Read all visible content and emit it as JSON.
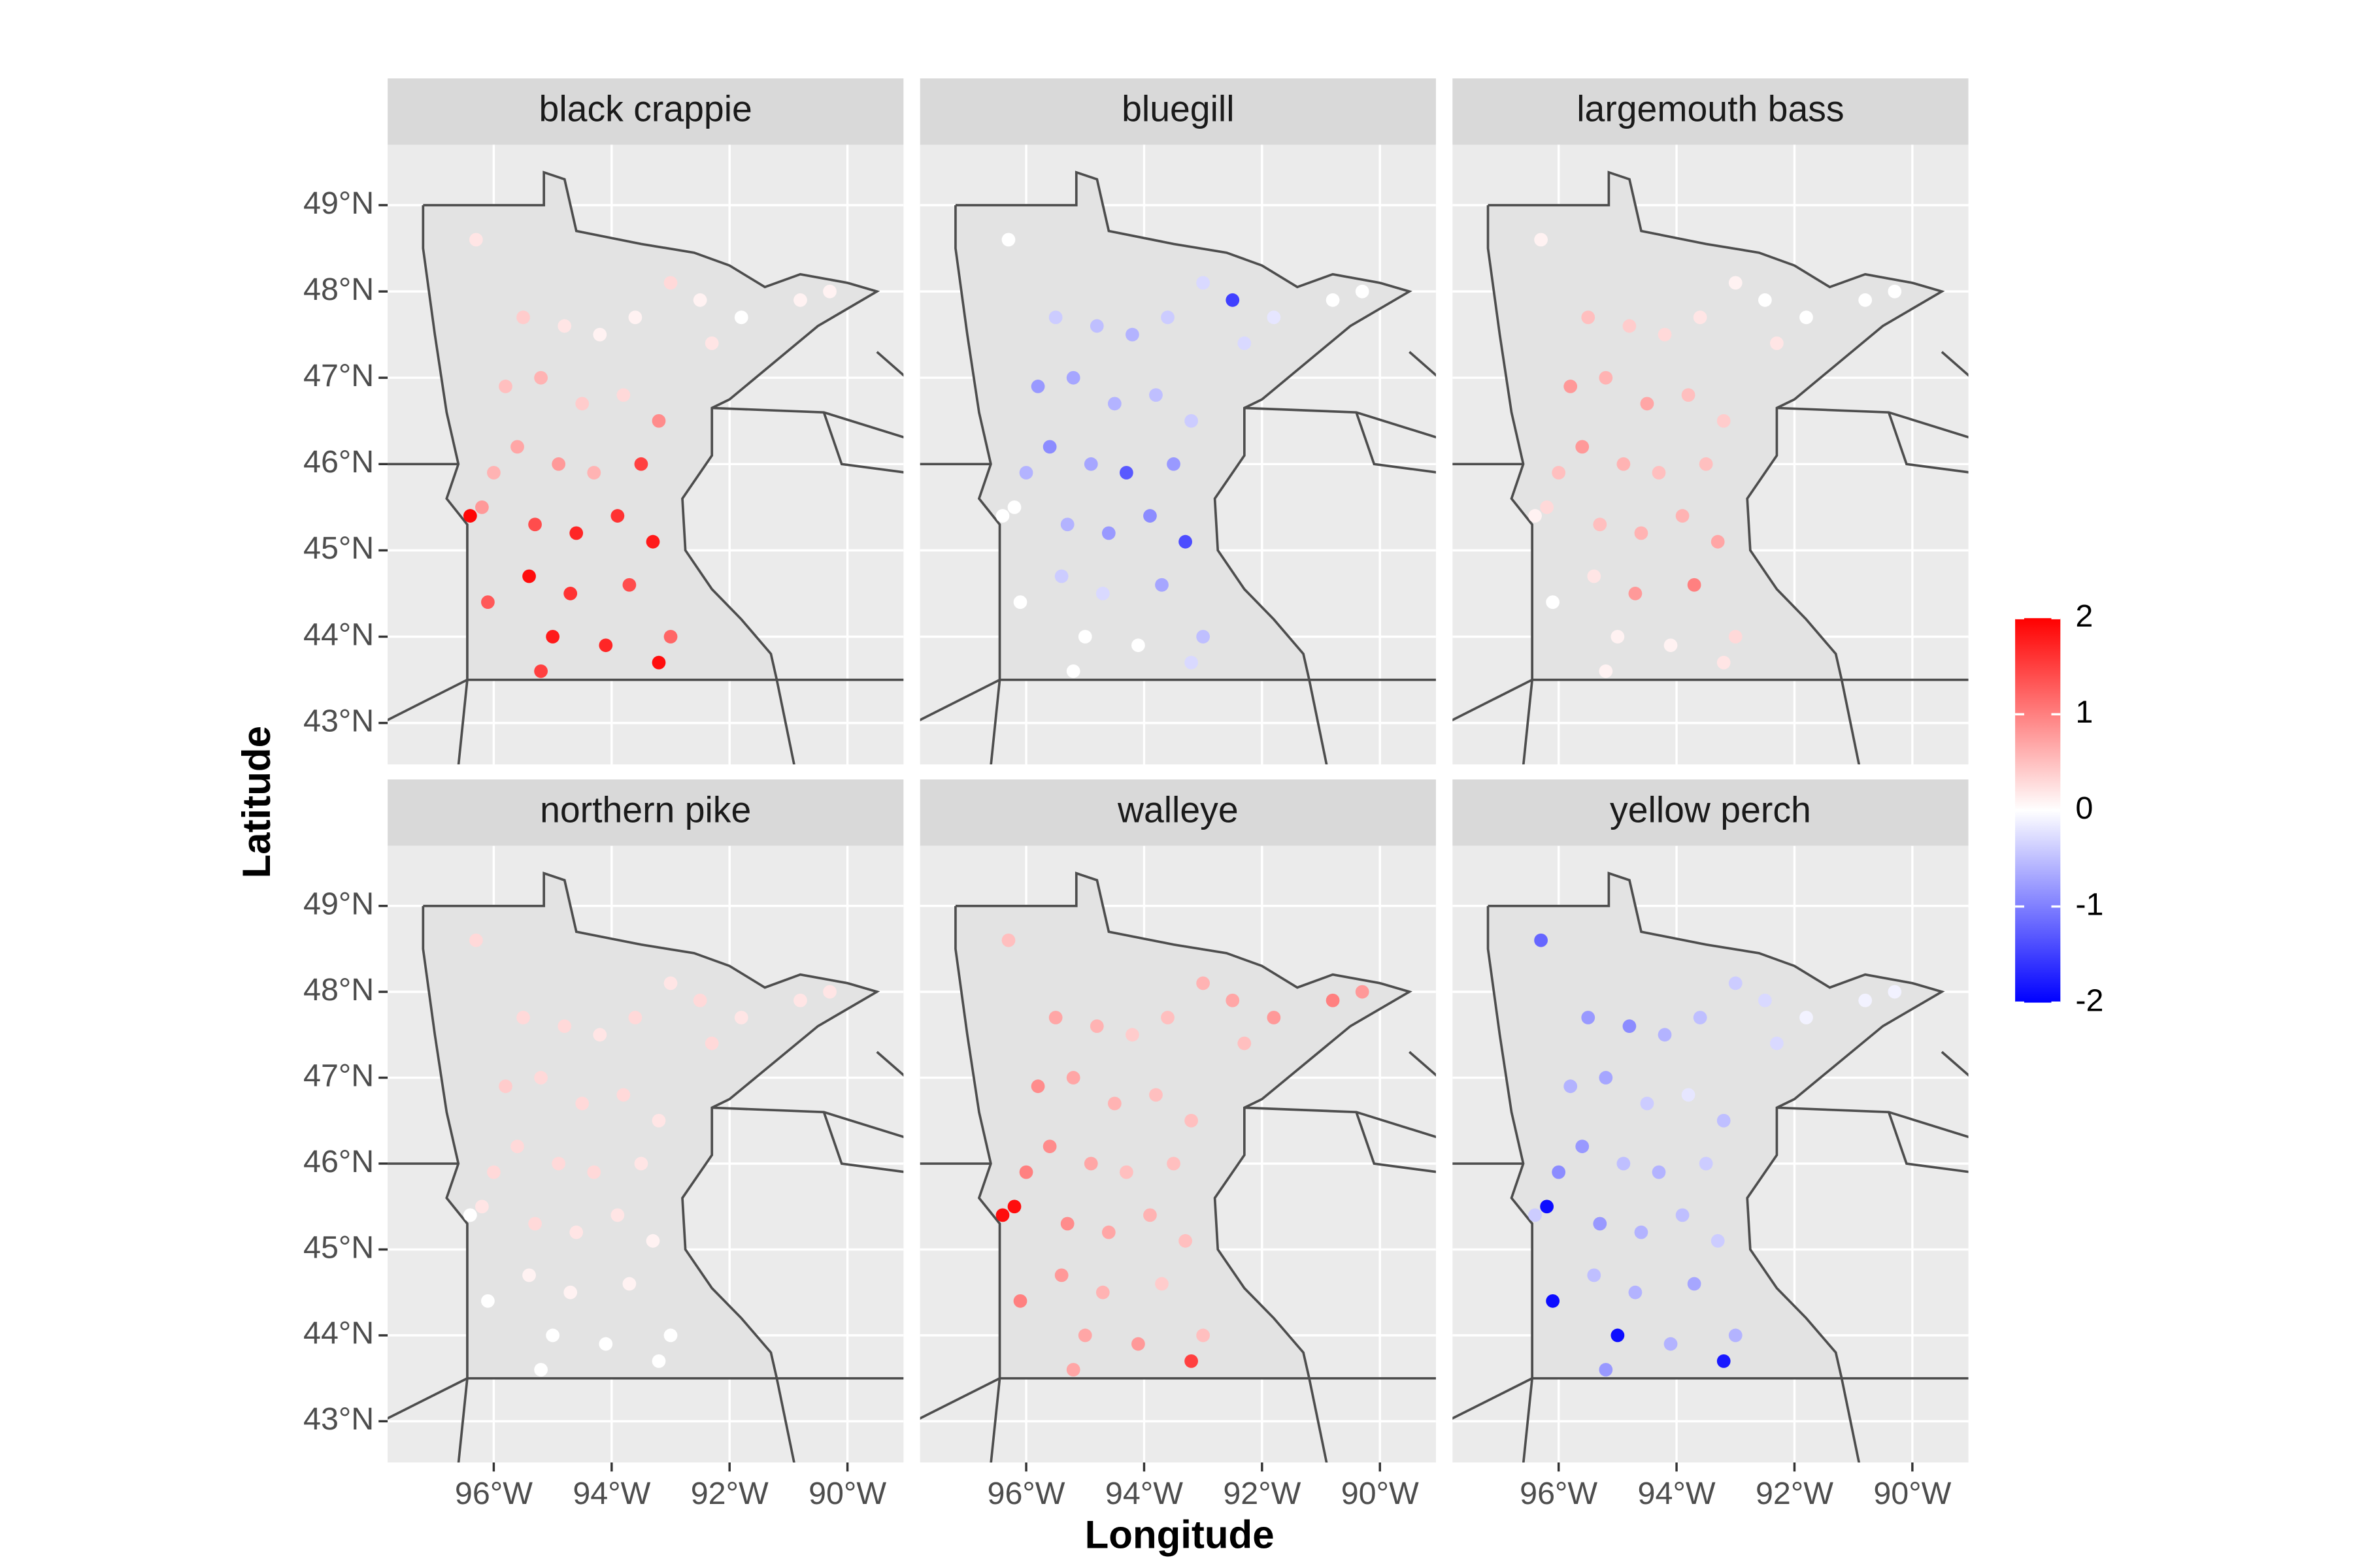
{
  "chart_data": {
    "type": "scatter",
    "x_label": "Longitude",
    "y_label": "Latitude",
    "xlim": [
      -97.8,
      -89.05
    ],
    "ylim": [
      42.52,
      49.7
    ],
    "xticks": [
      {
        "value": -96,
        "label": "96°W"
      },
      {
        "value": -94,
        "label": "94°W"
      },
      {
        "value": -92,
        "label": "92°W"
      },
      {
        "value": -90,
        "label": "90°W"
      }
    ],
    "yticks": [
      {
        "value": 43,
        "label": "43°N"
      },
      {
        "value": 44,
        "label": "44°N"
      },
      {
        "value": 45,
        "label": "45°N"
      },
      {
        "value": 46,
        "label": "46°N"
      },
      {
        "value": 47,
        "label": "47°N"
      },
      {
        "value": 48,
        "label": "48°N"
      },
      {
        "value": 49,
        "label": "49°N"
      }
    ],
    "grid": true,
    "colorbar": {
      "lim": [
        -2,
        2
      ],
      "ticks": [
        2,
        1,
        0,
        -1,
        -2
      ],
      "low": "#0000ff",
      "mid": "#ffffff",
      "high": "#ff0000"
    },
    "x": [
      -96.3,
      -95.5,
      -94.8,
      -94.2,
      -93.6,
      -93.0,
      -92.5,
      -91.8,
      -90.8,
      -95.8,
      -95.2,
      -94.5,
      -93.8,
      -93.2,
      -95.6,
      -94.9,
      -94.3,
      -93.5,
      -96.2,
      -95.3,
      -94.6,
      -93.9,
      -93.3,
      -95.4,
      -94.7,
      -93.7,
      -95.0,
      -94.1,
      -93.2,
      -96.4,
      -96.1,
      -95.2,
      -90.3,
      -92.3,
      -96.0,
      -93.0
    ],
    "y": [
      48.6,
      47.7,
      47.6,
      47.5,
      47.7,
      48.1,
      47.9,
      47.7,
      47.9,
      46.9,
      47.0,
      46.7,
      46.8,
      46.5,
      46.2,
      46.0,
      45.9,
      46.0,
      45.5,
      45.3,
      45.2,
      45.4,
      45.1,
      44.7,
      44.5,
      44.6,
      44.0,
      43.9,
      43.7,
      45.4,
      44.4,
      43.6,
      48.0,
      47.4,
      45.9,
      44.0
    ],
    "panels": [
      {
        "title": "black crappie",
        "values": [
          0.2,
          0.4,
          0.2,
          0.1,
          0.1,
          0.3,
          0.1,
          0.0,
          0.1,
          0.5,
          0.6,
          0.4,
          0.3,
          0.9,
          0.7,
          0.8,
          0.6,
          1.5,
          0.8,
          1.4,
          1.7,
          1.6,
          1.8,
          1.9,
          1.6,
          1.4,
          1.8,
          1.7,
          1.9,
          1.95,
          1.3,
          1.5,
          0.1,
          0.2,
          0.6,
          1.2
        ]
      },
      {
        "title": "bluegill",
        "values": [
          0,
          -0.4,
          -0.5,
          -0.6,
          -0.4,
          -0.3,
          -1.5,
          -0.2,
          0.0,
          -0.8,
          -0.7,
          -0.6,
          -0.5,
          -0.4,
          -0.9,
          -0.7,
          -1.3,
          -0.8,
          0.0,
          -0.6,
          -0.8,
          -0.9,
          -1.4,
          -0.4,
          -0.3,
          -0.7,
          0.0,
          0.0,
          -0.3,
          0.0,
          0.0,
          0.0,
          0.0,
          -0.3,
          -0.6,
          -0.5
        ]
      },
      {
        "title": "largemouth bass",
        "values": [
          0.1,
          0.5,
          0.4,
          0.3,
          0.2,
          0.1,
          0.0,
          0.0,
          0.0,
          0.8,
          0.6,
          0.7,
          0.5,
          0.4,
          0.8,
          0.6,
          0.5,
          0.5,
          0.3,
          0.5,
          0.6,
          0.6,
          0.7,
          0.2,
          0.8,
          1.0,
          0.1,
          0.1,
          0.2,
          0.1,
          0.0,
          0.1,
          0.0,
          0.2,
          0.5,
          0.3
        ]
      },
      {
        "title": "northern pike",
        "values": [
          0.3,
          0.3,
          0.3,
          0.2,
          0.3,
          0.2,
          0.3,
          0.2,
          0.2,
          0.4,
          0.3,
          0.3,
          0.3,
          0.2,
          0.3,
          0.3,
          0.3,
          0.2,
          0.2,
          0.3,
          0.2,
          0.2,
          0.1,
          0.1,
          0.1,
          0.1,
          0.0,
          0.0,
          0.0,
          0.0,
          0.0,
          0.0,
          0.2,
          0.3,
          0.3,
          0.0
        ]
      },
      {
        "title": "walleye",
        "values": [
          0.5,
          0.7,
          0.6,
          0.4,
          0.5,
          0.6,
          0.7,
          0.8,
          1.0,
          0.9,
          0.7,
          0.6,
          0.5,
          0.5,
          0.9,
          0.7,
          0.5,
          0.5,
          1.9,
          0.9,
          0.7,
          0.6,
          0.5,
          0.8,
          0.6,
          0.4,
          0.7,
          0.8,
          1.5,
          1.9,
          1.0,
          0.7,
          0.8,
          0.5,
          1.0,
          0.5
        ]
      },
      {
        "title": "yellow perch",
        "values": [
          -1.2,
          -0.8,
          -0.9,
          -0.6,
          -0.5,
          -0.4,
          -0.3,
          -0.1,
          -0.1,
          -0.6,
          -0.7,
          -0.4,
          -0.2,
          -0.5,
          -0.8,
          -0.5,
          -0.6,
          -0.4,
          -1.9,
          -0.8,
          -0.6,
          -0.5,
          -0.4,
          -0.5,
          -0.6,
          -0.7,
          -1.9,
          -0.6,
          -1.8,
          -0.4,
          -1.9,
          -0.8,
          -0.1,
          -0.3,
          -0.9,
          -0.6
        ]
      }
    ]
  }
}
